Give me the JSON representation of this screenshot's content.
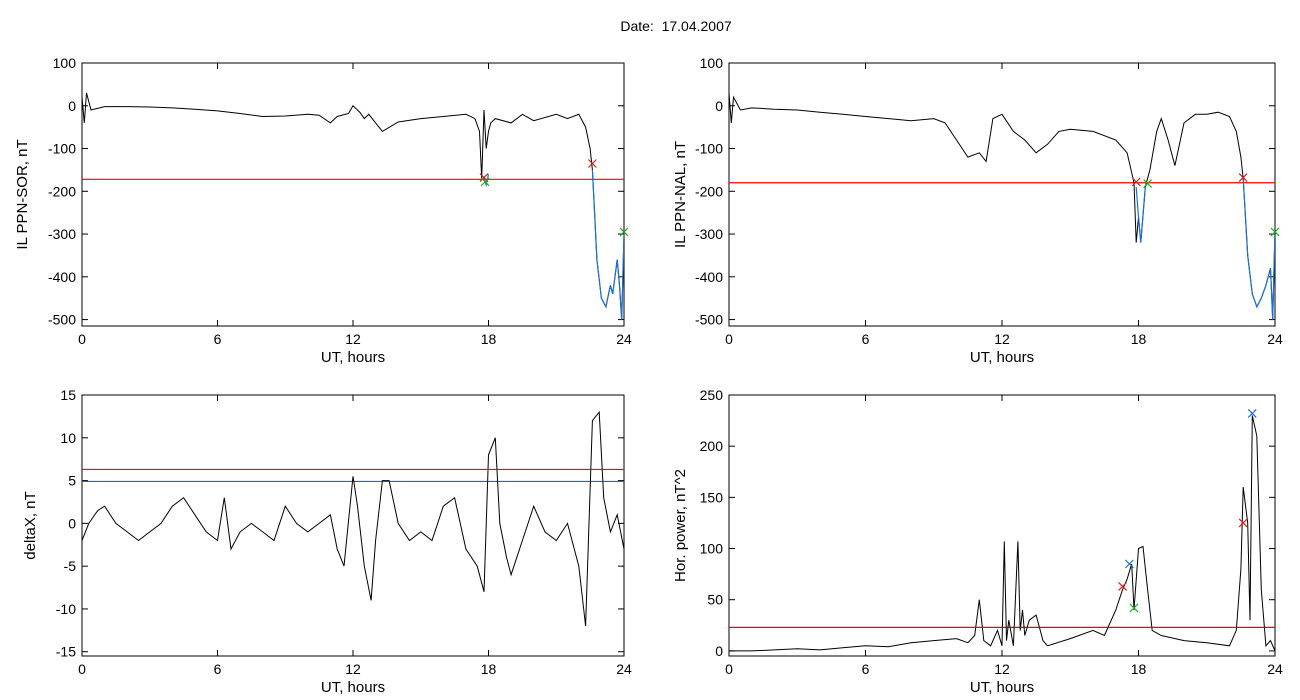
{
  "title": "Date:  17.04.2007",
  "colors": {
    "trace": "#000000",
    "threshold_red": "#ff0000",
    "threshold_blue": "#1a6fb0",
    "segment_blue": "#1a6fd0",
    "mark_red": "#cc2222",
    "mark_green": "#22aa22",
    "mark_blue": "#1a6fd0"
  },
  "chart_data": [
    {
      "type": "line",
      "xlabel": "UT, hours",
      "ylabel": "IL PPN-SOR, nT",
      "xlim": [
        0,
        24
      ],
      "ylim": [
        -515,
        100
      ],
      "xticks": [
        0,
        6,
        12,
        18,
        24
      ],
      "yticks": [
        100,
        0,
        -100,
        -200,
        -300,
        -400,
        -500
      ],
      "threshold": {
        "y": -172,
        "color": "red"
      },
      "series": [
        {
          "x": [
            0,
            0.1,
            0.2,
            0.4,
            1,
            2,
            3,
            4,
            5,
            6,
            7,
            8,
            9,
            10,
            10.5,
            11,
            11.3,
            11.8,
            12,
            12.3,
            12.5,
            12.7,
            13,
            13.3,
            14,
            15,
            16,
            17,
            17.4,
            17.6,
            17.7,
            17.8,
            17.9,
            18.0,
            18.1,
            18.3,
            19,
            19.5,
            20,
            21,
            21.5,
            22,
            22.3,
            22.5,
            22.6,
            22.7,
            22.8,
            23.0,
            23.2,
            23.4,
            23.5,
            23.7,
            23.8,
            23.9,
            24
          ],
          "y": [
            20,
            -40,
            30,
            -10,
            -2,
            -2,
            -3,
            -5,
            -8,
            -12,
            -18,
            -25,
            -24,
            -20,
            -22,
            -40,
            -25,
            -18,
            0,
            -15,
            -30,
            -20,
            -40,
            -60,
            -38,
            -30,
            -25,
            -20,
            -30,
            -60,
            -170,
            -10,
            -100,
            -60,
            -40,
            -30,
            -40,
            -20,
            -35,
            -20,
            -30,
            -20,
            -50,
            -100,
            -150,
            -250,
            -360,
            -450,
            -470,
            -420,
            -440,
            -360,
            -420,
            -500,
            -300
          ]
        }
      ],
      "blue_segments": [
        {
          "x": [
            17.8,
            17.9,
            18.0
          ],
          "y": [
            -170,
            -185,
            -160
          ]
        },
        {
          "x": [
            22.6,
            22.8,
            23.0,
            23.2,
            23.4,
            23.5,
            23.7,
            23.8,
            23.9,
            24
          ],
          "y": [
            -150,
            -360,
            -450,
            -470,
            -420,
            -440,
            -360,
            -420,
            -500,
            -300
          ]
        }
      ],
      "markers": [
        {
          "x": 17.8,
          "y": -168,
          "color": "red"
        },
        {
          "x": 17.85,
          "y": -178,
          "color": "green"
        },
        {
          "x": 22.6,
          "y": -135,
          "color": "red"
        },
        {
          "x": 24.0,
          "y": -295,
          "color": "green"
        }
      ]
    },
    {
      "type": "line",
      "xlabel": "UT, hours",
      "ylabel": "IL PPN-NAL, nT",
      "xlim": [
        0,
        24
      ],
      "ylim": [
        -515,
        100
      ],
      "xticks": [
        0,
        6,
        12,
        18,
        24
      ],
      "yticks": [
        100,
        0,
        -100,
        -200,
        -300,
        -400,
        -500
      ],
      "threshold": {
        "y": -180,
        "color": "red"
      },
      "series": [
        {
          "x": [
            0,
            0.1,
            0.2,
            0.5,
            1,
            2,
            3,
            4,
            5,
            6,
            7,
            8,
            9,
            9.5,
            10,
            10.5,
            11,
            11.3,
            11.6,
            12,
            12.5,
            13,
            13.5,
            14,
            14.5,
            15,
            16,
            17,
            17.5,
            17.8,
            17.9,
            18.0,
            18.1,
            18.3,
            18.5,
            18.8,
            19,
            19.3,
            19.6,
            20,
            20.5,
            21,
            21.5,
            22,
            22.3,
            22.5,
            22.6,
            22.8,
            23.0,
            23.2,
            23.4,
            23.6,
            23.8,
            23.9,
            24
          ],
          "y": [
            30,
            -40,
            20,
            -10,
            -5,
            -8,
            -10,
            -15,
            -20,
            -25,
            -30,
            -35,
            -30,
            -40,
            -80,
            -120,
            -110,
            -130,
            -30,
            -20,
            -60,
            -80,
            -110,
            -90,
            -60,
            -55,
            -60,
            -80,
            -110,
            -180,
            -320,
            -260,
            -320,
            -190,
            -150,
            -60,
            -30,
            -80,
            -140,
            -40,
            -20,
            -20,
            -15,
            -25,
            -60,
            -120,
            -170,
            -350,
            -440,
            -470,
            -450,
            -420,
            -380,
            -500,
            -290
          ]
        }
      ],
      "blue_segments": [
        {
          "x": [
            17.9,
            18.0,
            18.1,
            18.3
          ],
          "y": [
            -190,
            -260,
            -320,
            -190
          ]
        },
        {
          "x": [
            22.6,
            22.8,
            23.0,
            23.2,
            23.4,
            23.6,
            23.8,
            23.9,
            24
          ],
          "y": [
            -170,
            -350,
            -440,
            -470,
            -450,
            -420,
            -380,
            -500,
            -290
          ]
        }
      ],
      "markers": [
        {
          "x": 17.9,
          "y": -178,
          "color": "red"
        },
        {
          "x": 18.4,
          "y": -182,
          "color": "green"
        },
        {
          "x": 22.6,
          "y": -168,
          "color": "red"
        },
        {
          "x": 24.0,
          "y": -295,
          "color": "green"
        }
      ]
    },
    {
      "type": "line",
      "xlabel": "UT, hours",
      "ylabel": "deltaX, nT",
      "xlim": [
        0,
        24
      ],
      "ylim": [
        -15.5,
        15
      ],
      "xticks": [
        0,
        6,
        12,
        18,
        24
      ],
      "yticks": [
        15,
        10,
        5,
        0,
        -5,
        -10,
        -15
      ],
      "thresholds": [
        {
          "y": 6.3,
          "color": "red"
        },
        {
          "y": 4.9,
          "color": "blue"
        }
      ],
      "series": [
        {
          "x": [
            0,
            0.3,
            0.7,
            1,
            1.5,
            2,
            2.5,
            3,
            3.5,
            4,
            4.5,
            5,
            5.5,
            6,
            6.3,
            6.6,
            7,
            7.5,
            8,
            8.5,
            9,
            9.5,
            10,
            10.5,
            11,
            11.3,
            11.6,
            12,
            12.2,
            12.5,
            12.8,
            13,
            13.3,
            13.6,
            14,
            14.5,
            15,
            15.5,
            16,
            16.5,
            17,
            17.5,
            17.8,
            18,
            18.3,
            18.5,
            18.8,
            19,
            19.5,
            20,
            20.5,
            21,
            21.5,
            22,
            22.3,
            22.6,
            22.9,
            23.1,
            23.4,
            23.7,
            24
          ],
          "y": [
            -2,
            0,
            1.5,
            2,
            0,
            -1,
            -2,
            -1,
            0,
            2,
            3,
            1,
            -1,
            -2,
            3,
            -3,
            -1,
            0,
            -1,
            -2,
            2,
            0,
            -1,
            0,
            1,
            -3,
            -5,
            5.5,
            2,
            -5,
            -9,
            -2,
            5,
            5,
            0,
            -2,
            -1,
            -2,
            2,
            3,
            -3,
            -5,
            -8,
            8,
            10,
            0,
            -4,
            -6,
            -2,
            2,
            -1,
            -2,
            0,
            -5,
            -12,
            12,
            13,
            3,
            -1,
            1,
            -3
          ]
        }
      ],
      "markers": []
    },
    {
      "type": "line",
      "xlabel": "UT, hours",
      "ylabel": "Hor. power, nT^2",
      "xlim": [
        0,
        24
      ],
      "ylim": [
        -5,
        250
      ],
      "xticks": [
        0,
        6,
        12,
        18,
        24
      ],
      "yticks": [
        250,
        200,
        150,
        100,
        50,
        0
      ],
      "threshold": {
        "y": 23,
        "color": "red"
      },
      "series": [
        {
          "x": [
            0,
            1,
            2,
            3,
            4,
            5,
            6,
            7,
            8,
            9,
            10,
            10.5,
            10.8,
            11,
            11.2,
            11.5,
            11.8,
            12.0,
            12.1,
            12.2,
            12.3,
            12.5,
            12.7,
            12.8,
            12.9,
            13.0,
            13.2,
            13.5,
            13.8,
            14,
            15,
            16,
            16.5,
            17,
            17.3,
            17.5,
            17.7,
            17.8,
            18.0,
            18.2,
            18.4,
            18.6,
            19,
            20,
            21,
            22,
            22.3,
            22.5,
            22.6,
            22.8,
            22.9,
            23.0,
            23.2,
            23.4,
            23.6,
            23.8,
            24
          ],
          "y": [
            0,
            0,
            1,
            2,
            1,
            3,
            5,
            4,
            8,
            10,
            12,
            8,
            15,
            50,
            10,
            5,
            20,
            5,
            107,
            10,
            30,
            5,
            107,
            20,
            40,
            15,
            30,
            35,
            10,
            5,
            12,
            20,
            15,
            40,
            60,
            70,
            85,
            40,
            100,
            102,
            60,
            20,
            15,
            10,
            8,
            5,
            20,
            80,
            160,
            125,
            30,
            230,
            210,
            60,
            5,
            10,
            0
          ]
        }
      ],
      "markers": [
        {
          "x": 17.6,
          "y": 85,
          "color": "blue"
        },
        {
          "x": 17.3,
          "y": 63,
          "color": "red"
        },
        {
          "x": 17.8,
          "y": 42,
          "color": "green"
        },
        {
          "x": 22.6,
          "y": 125,
          "color": "red"
        },
        {
          "x": 23.0,
          "y": 232,
          "color": "blue"
        }
      ]
    }
  ]
}
